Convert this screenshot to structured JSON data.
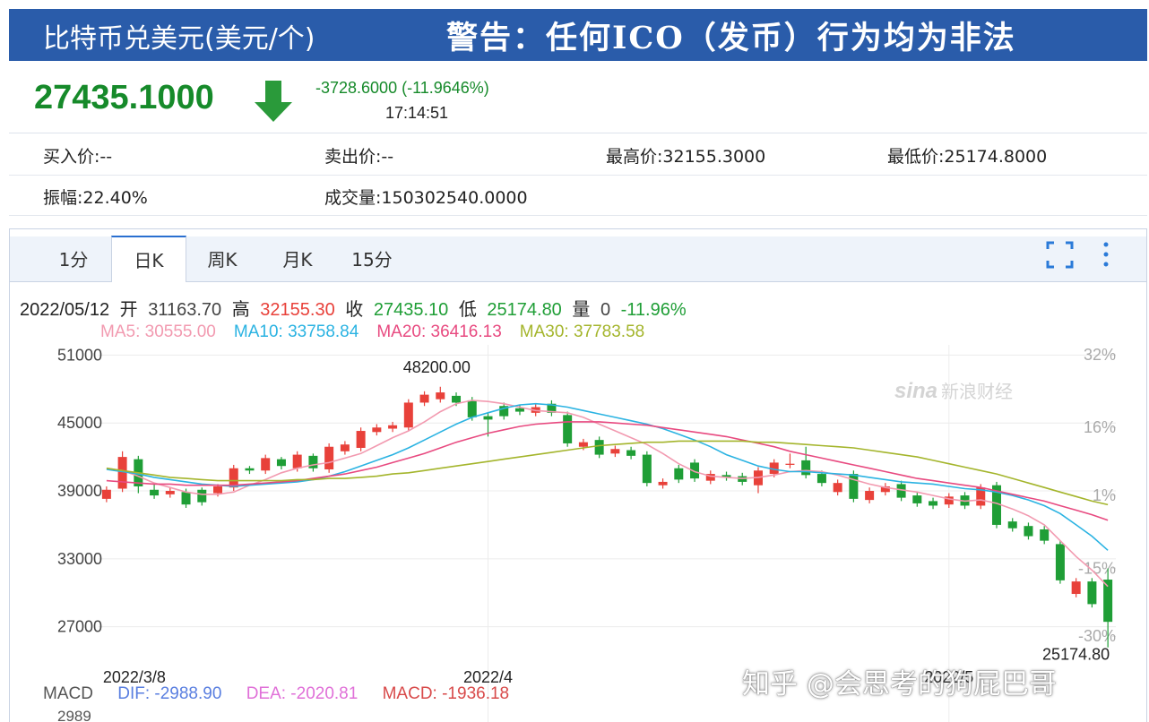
{
  "header": {
    "title": "比特币兑美元(美元/个)",
    "warning": "警告：任何ICO（发币）行为均为非法"
  },
  "quote": {
    "price": "27435.1000",
    "change": "-3728.6000 (-11.9646%)",
    "time": "17:14:51"
  },
  "stats": [
    [
      "买入价:--",
      "卖出价:--",
      "最高价:32155.3000",
      "最低价:25174.8000"
    ],
    [
      "振幅:22.40%",
      "成交量:150302540.0000"
    ]
  ],
  "tabs": [
    "1分",
    "日K",
    "周K",
    "月K",
    "15分"
  ],
  "info": {
    "date": "2022/05/12",
    "open_label": "开",
    "open": "31163.70",
    "high_label": "高",
    "high": "32155.30",
    "close_label": "收",
    "close": "27435.10",
    "low_label": "低",
    "low": "25174.80",
    "volume_label": "量",
    "volume": "0",
    "change": "-11.96%"
  },
  "chart_data": {
    "type": "candlestick",
    "categories": [
      "2022/3/8",
      null,
      null,
      null,
      null,
      null,
      null,
      null,
      null,
      null,
      null,
      null,
      null,
      null,
      null,
      null,
      null,
      null,
      null,
      null,
      null,
      null,
      null,
      null,
      "2022/4",
      null,
      null,
      null,
      null,
      null,
      null,
      null,
      null,
      null,
      null,
      null,
      null,
      null,
      null,
      null,
      null,
      null,
      null,
      null,
      null,
      null,
      null,
      null,
      null,
      null,
      null,
      null,
      null,
      "2022/5",
      null,
      null,
      null,
      null,
      null,
      null,
      null,
      null,
      null,
      null
    ],
    "open": [
      38300,
      39200,
      41800,
      39100,
      38700,
      38900,
      39100,
      38800,
      39300,
      41000,
      40800,
      41800,
      41000,
      42100,
      40900,
      42500,
      42800,
      44200,
      44500,
      44600,
      46800,
      47100,
      47400,
      47000,
      45600,
      46500,
      46300,
      45900,
      46700,
      45700,
      42900,
      43500,
      42300,
      42600,
      42200,
      39500,
      41000,
      41500,
      39900,
      40400,
      40300,
      39500,
      40500,
      41300,
      41700,
      40500,
      38900,
      40500,
      38200,
      38900,
      39600,
      38600,
      38100,
      37800,
      38600,
      37700,
      39500,
      36300,
      35900,
      35600,
      34300,
      29900,
      31000,
      31163.7
    ],
    "high": [
      39400,
      42500,
      42100,
      39600,
      39300,
      39200,
      39300,
      39600,
      41300,
      41200,
      42200,
      42000,
      42500,
      42300,
      43200,
      43400,
      44600,
      44900,
      45100,
      47100,
      47800,
      48200,
      47700,
      47300,
      45900,
      46800,
      46600,
      46700,
      47000,
      46000,
      43600,
      43800,
      43000,
      42900,
      42500,
      40100,
      41300,
      41800,
      40800,
      40700,
      40600,
      41100,
      41800,
      42300,
      42900,
      40800,
      40000,
      40800,
      39300,
      39700,
      39900,
      38900,
      38400,
      38800,
      38900,
      39600,
      39800,
      36600,
      36200,
      35900,
      34600,
      31300,
      31300,
      32155.3
    ],
    "low": [
      38000,
      38900,
      38800,
      38300,
      38400,
      37500,
      37700,
      38500,
      39000,
      40500,
      40500,
      40900,
      40700,
      40700,
      40600,
      42200,
      42500,
      43900,
      44200,
      44300,
      46500,
      46800,
      46500,
      45200,
      43800,
      45300,
      45700,
      45600,
      45600,
      42900,
      42600,
      41900,
      42000,
      41800,
      39400,
      39200,
      39700,
      39800,
      39600,
      39900,
      39500,
      38800,
      40200,
      41000,
      40100,
      39400,
      38600,
      38000,
      37900,
      38600,
      38100,
      37600,
      37400,
      37500,
      37400,
      37400,
      35700,
      35400,
      34700,
      34300,
      30800,
      29600,
      28700,
      25174.8
    ],
    "close": [
      39100,
      42000,
      39400,
      38600,
      39000,
      37800,
      38000,
      39400,
      41000,
      40800,
      41900,
      41200,
      42200,
      41000,
      42900,
      43100,
      44300,
      44600,
      44800,
      46800,
      47500,
      47700,
      46800,
      45500,
      45300,
      45600,
      46000,
      46400,
      45900,
      43200,
      43300,
      42200,
      42700,
      42100,
      39700,
      39800,
      40000,
      40100,
      40500,
      40200,
      39800,
      40800,
      41500,
      41400,
      40400,
      39700,
      39700,
      38300,
      39000,
      39400,
      38400,
      37900,
      37700,
      38500,
      37700,
      39300,
      36000,
      35700,
      35000,
      34600,
      31100,
      31000,
      29000,
      27435.1
    ],
    "up_color": "#e8413a",
    "down_color": "#1f9e36",
    "series": [
      {
        "name": "MA5: 30555.00",
        "color": "#f29ab0",
        "values": [
          41000,
          40800,
          40300,
          39700,
          39300,
          38900,
          38700,
          38700,
          38900,
          39500,
          40000,
          40600,
          41000,
          41300,
          41500,
          41900,
          42300,
          43000,
          43700,
          44300,
          45100,
          46000,
          46700,
          47000,
          46900,
          46700,
          46400,
          46100,
          46000,
          45900,
          45500,
          44900,
          44300,
          43700,
          43100,
          42300,
          41400,
          40700,
          40300,
          40200,
          40100,
          40200,
          40400,
          40700,
          40800,
          40700,
          40400,
          40000,
          39600,
          39300,
          39100,
          38900,
          38600,
          38300,
          38100,
          38200,
          37900,
          37400,
          36800,
          36000,
          34600,
          33200,
          32000,
          30555
        ]
      },
      {
        "name": "MA10: 33758.84",
        "color": "#2bb3e2",
        "values": [
          40900,
          40700,
          40500,
          40200,
          40000,
          39800,
          39600,
          39500,
          39400,
          39500,
          39600,
          39700,
          39800,
          40000,
          40300,
          40700,
          41200,
          41700,
          42200,
          42800,
          43500,
          44200,
          44900,
          45500,
          45900,
          46300,
          46600,
          46700,
          46600,
          46400,
          46100,
          45800,
          45500,
          45200,
          44900,
          44500,
          44000,
          43500,
          42900,
          42200,
          41700,
          41200,
          40900,
          40700,
          40700,
          40600,
          40500,
          40400,
          40200,
          40000,
          39800,
          39700,
          39600,
          39400,
          39200,
          39100,
          38900,
          38600,
          38200,
          37700,
          37000,
          36000,
          35000,
          33758.84
        ]
      },
      {
        "name": "MA20: 36416.13",
        "color": "#e84a80",
        "values": [
          39900,
          39800,
          39700,
          39600,
          39600,
          39500,
          39500,
          39500,
          39500,
          39600,
          39700,
          39800,
          39900,
          40100,
          40300,
          40500,
          40800,
          41100,
          41500,
          41900,
          42300,
          42800,
          43300,
          43700,
          44100,
          44400,
          44700,
          44900,
          45000,
          45100,
          45100,
          45100,
          45000,
          44900,
          44800,
          44600,
          44400,
          44200,
          44000,
          43800,
          43500,
          43200,
          42900,
          42500,
          42200,
          41900,
          41600,
          41300,
          41000,
          40700,
          40400,
          40100,
          39900,
          39700,
          39500,
          39300,
          39000,
          38700,
          38400,
          38100,
          37700,
          37300,
          36900,
          36416.13
        ]
      },
      {
        "name": "MA30: 37783.58",
        "color": "#a4b52c",
        "values": [
          41000,
          40800,
          40600,
          40400,
          40200,
          40100,
          40000,
          39900,
          39900,
          39900,
          39900,
          39900,
          40000,
          40000,
          40100,
          40100,
          40200,
          40300,
          40500,
          40600,
          40800,
          41000,
          41200,
          41400,
          41600,
          41800,
          42000,
          42200,
          42400,
          42600,
          42800,
          43000,
          43100,
          43200,
          43300,
          43300,
          43400,
          43400,
          43400,
          43400,
          43400,
          43300,
          43300,
          43200,
          43100,
          43000,
          42900,
          42800,
          42600,
          42400,
          42200,
          42000,
          41700,
          41400,
          41100,
          40800,
          40500,
          40100,
          39700,
          39300,
          38900,
          38500,
          38100,
          37783.58
        ]
      }
    ],
    "ylim": [
      24600,
      51900
    ],
    "yticks": [
      27000,
      33000,
      39000,
      45000,
      51000
    ],
    "y2lim": [
      -33.9,
      34.2
    ],
    "y2ticks": [
      {
        "value": -30,
        "label": "-30%"
      },
      {
        "value": -15,
        "label": "-15%"
      },
      {
        "value": 1,
        "label": "1%"
      },
      {
        "value": 16,
        "label": "16%"
      },
      {
        "value": 32,
        "label": "32%"
      }
    ],
    "grid": true,
    "high_annotation": "48200.00",
    "low_annotation": "25174.80",
    "logo": "sina",
    "logo_text": "新浪财经"
  },
  "macd": {
    "name": "MACD",
    "dif": "DIF: -2988.90",
    "dea": "DEA: -2020.81",
    "macd": "MACD: -1936.18",
    "tick": "2989"
  },
  "watermark": "知乎 @会思考的狗屁巴哥"
}
